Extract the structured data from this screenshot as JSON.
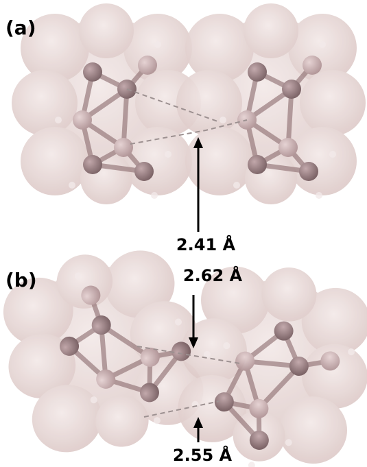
{
  "panel_a": {
    "label": "(a)",
    "distance": "2.41 Å"
  },
  "panel_b": {
    "label": "(b)",
    "distance_top": "2.62 Å",
    "distance_bottom": "2.55 Å"
  }
}
